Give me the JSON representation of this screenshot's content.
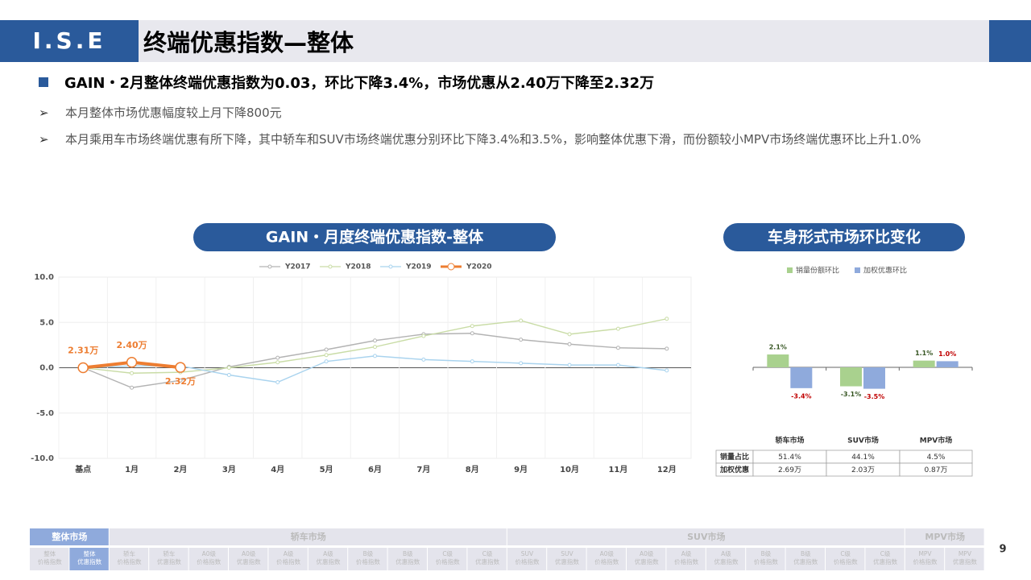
{
  "header": {
    "logo": "I.S.E",
    "title": "终端优惠指数—整体"
  },
  "bullets": {
    "main": "GAIN・2月整体终端优惠指数为0.03，环比下降3.4%，市场优惠从2.40万下降至2.32万",
    "items": [
      "本月整体市场优惠幅度较上月下降800元",
      "本月乘用车市场终端优惠有所下降，其中轿车和SUV市场终端优惠分别环比下降3.4%和3.5%，影响整体优惠下滑，而份额较小MPV市场终端优惠环比上升1.0%"
    ]
  },
  "chart_data": [
    {
      "type": "line",
      "title": "GAIN・月度终端优惠指数-整体",
      "categories": [
        "基点",
        "1月",
        "2月",
        "3月",
        "4月",
        "5月",
        "6月",
        "7月",
        "8月",
        "9月",
        "10月",
        "11月",
        "12月"
      ],
      "series": [
        {
          "name": "Y2017",
          "color": "#b3b3b3",
          "values": [
            0,
            -2.2,
            -1.4,
            0.1,
            1.1,
            2.0,
            3.0,
            3.7,
            3.8,
            3.1,
            2.6,
            2.2,
            2.1
          ]
        },
        {
          "name": "Y2018",
          "color": "#c9dca6",
          "values": [
            0,
            -0.6,
            -0.5,
            0.0,
            0.6,
            1.4,
            2.3,
            3.5,
            4.6,
            5.2,
            3.7,
            4.3,
            5.4
          ]
        },
        {
          "name": "Y2019",
          "color": "#a9d3ee",
          "values": [
            0,
            0.2,
            0.2,
            -0.8,
            -1.6,
            0.7,
            1.3,
            0.9,
            0.7,
            0.5,
            0.3,
            0.3,
            -0.3
          ]
        },
        {
          "name": "Y2020",
          "color": "#ed7d31",
          "values": [
            0,
            0.6,
            0.03,
            null,
            null,
            null,
            null,
            null,
            null,
            null,
            null,
            null,
            null
          ]
        }
      ],
      "annotations": [
        "2.31万",
        "2.40万",
        "2.32万"
      ],
      "ylim": [
        -10,
        10
      ],
      "yticks": [
        {
          "value": -10,
          "label": "-10.0"
        },
        {
          "value": -5,
          "label": "-5.0"
        },
        {
          "value": 0,
          "label": "0.0"
        },
        {
          "value": 5,
          "label": "5.0"
        },
        {
          "value": 10,
          "label": "10.0"
        }
      ],
      "grid": true
    },
    {
      "type": "bar",
      "title": "车身形式市场环比变化",
      "categories": [
        "轿车市场",
        "SUV市场",
        "MPV市场"
      ],
      "series": [
        {
          "name": "销量份额环比",
          "color": "#a9d18e",
          "values": [
            2.1,
            -3.1,
            1.1
          ],
          "value_labels": [
            "2.1%",
            "-3.1%",
            "1.1%"
          ]
        },
        {
          "name": "加权优惠环比",
          "color": "#8faadc",
          "values": [
            -3.4,
            -3.5,
            1.0
          ],
          "value_labels": [
            "-3.4%",
            "-3.5%",
            "1.0%"
          ]
        }
      ]
    }
  ],
  "table": {
    "rows": [
      [
        "销量占比",
        "51.4%",
        "44.1%",
        "4.5%"
      ],
      [
        "加权优惠",
        "2.69万",
        "2.03万",
        "0.87万"
      ]
    ]
  },
  "nav": {
    "groups": [
      "整体市场",
      "轿车市场",
      "SUV市场",
      "MPV市场"
    ],
    "tabs": [
      [
        "整体",
        "价格指数"
      ],
      [
        "整体",
        "优惠指数"
      ],
      [
        "轿车",
        "价格指数"
      ],
      [
        "轿车",
        "优惠指数"
      ],
      [
        "A0级",
        "价格指数"
      ],
      [
        "A0级",
        "优惠指数"
      ],
      [
        "A级",
        "价格指数"
      ],
      [
        "A级",
        "优惠指数"
      ],
      [
        "B级",
        "价格指数"
      ],
      [
        "B级",
        "优惠指数"
      ],
      [
        "C级",
        "价格指数"
      ],
      [
        "C级",
        "优惠指数"
      ],
      [
        "SUV",
        "价格指数"
      ],
      [
        "SUV",
        "优惠指数"
      ],
      [
        "A0级",
        "价格指数"
      ],
      [
        "A0级",
        "优惠指数"
      ],
      [
        "A级",
        "价格指数"
      ],
      [
        "A级",
        "优惠指数"
      ],
      [
        "B级",
        "价格指数"
      ],
      [
        "B级",
        "优惠指数"
      ],
      [
        "C级",
        "价格指数"
      ],
      [
        "C级",
        "优惠指数"
      ],
      [
        "MPV",
        "价格指数"
      ],
      [
        "MPV",
        "优惠指数"
      ]
    ]
  },
  "page": "9"
}
